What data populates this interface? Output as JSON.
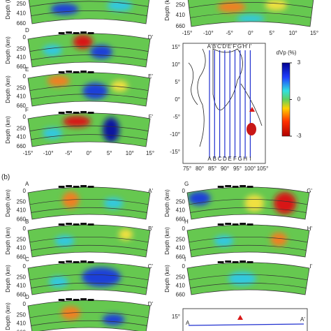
{
  "depth_label": "Depth (km)",
  "depth_ticks": [
    0,
    250,
    410,
    660
  ],
  "a_left_sections": [
    {
      "start": "D",
      "end": "D'"
    },
    {
      "start": "E",
      "end": "E'"
    },
    {
      "start": "F",
      "end": "F'"
    }
  ],
  "a_left_x_ticks": [
    "-15°",
    "-10°",
    "-5°",
    "0°",
    "5°",
    "10°",
    "15°"
  ],
  "a_right_x_ticks": [
    "-15°",
    "-10°",
    "-5°",
    "0°",
    "5°",
    "10°",
    "15°"
  ],
  "map": {
    "lat_ticks": [
      "15°",
      "10°",
      "5°",
      "0°",
      "-5°",
      "-10°",
      "-15°"
    ],
    "lon_ticks": [
      "75°",
      "80°",
      "85°",
      "90°",
      "95°",
      "100°",
      "105°"
    ],
    "top_labels": [
      "A'",
      "B'",
      "C'",
      "D'",
      "E'",
      "F'",
      "G'",
      "H'",
      "I'"
    ],
    "bottom_labels": [
      "A",
      "B",
      "C",
      "D",
      "E",
      "F",
      "G",
      "H",
      "I"
    ],
    "colorbar": {
      "label": "dVp (%)",
      "ticks": [
        3,
        0,
        -3
      ],
      "range": [
        -3,
        3
      ]
    }
  },
  "b": {
    "label": "(b)",
    "left_sections": [
      {
        "start": "A",
        "end": "A'"
      },
      {
        "start": "B",
        "end": "B'"
      },
      {
        "start": "C",
        "end": "C'"
      },
      {
        "start": "D",
        "end": "D'"
      }
    ],
    "right_sections": [
      {
        "start": "G",
        "end": "G'"
      },
      {
        "start": "H",
        "end": "H'"
      },
      {
        "start": "I",
        "end": "I'"
      }
    ],
    "map": {
      "lat_tick": "15°",
      "start": "A",
      "end": "A'"
    }
  }
}
